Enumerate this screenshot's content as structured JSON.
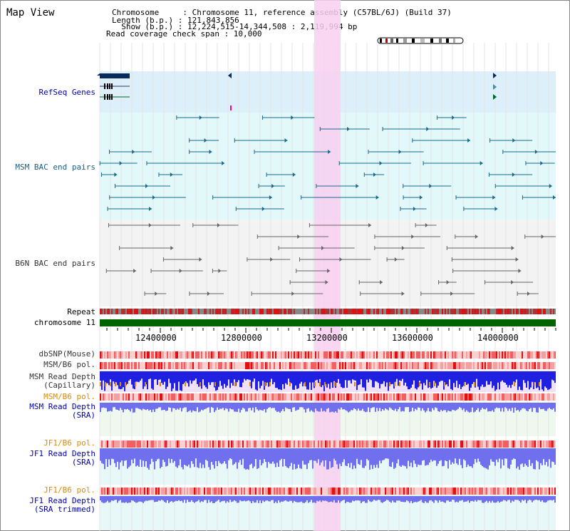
{
  "title": "Map View",
  "info": {
    "line1": "Chromosome     : Chromosome 11, reference assembly (C57BL/6J) (Build 37)",
    "line2": "Length (b.p.) : 121,843,856",
    "line3": "  Show (b.p.) : 12,224,515-14,344,508 : 2,119,994 bp",
    "line4": "Read coverage check span : 10,000"
  },
  "tracks": {
    "refseq": "RefSeq Genes",
    "msm_bac": "MSM BAC end pairs",
    "b6n_bac": "B6N BAC end pairs",
    "repeat": "Repeat",
    "chromosome": "chromosome 11",
    "dbsnp": "dbSNP(Mouse)",
    "msm_b6_pol1": "MSM/B6 pol.",
    "msm_depth_cap_1": "MSM Read Depth",
    "msm_depth_cap_2": "(Capillary)",
    "msm_b6_pol2": "MSM/B6 pol.",
    "msm_depth_sra_1": "MSM Read Depth",
    "msm_depth_sra_2": "(SRA)",
    "jf1_b6_pol1": "JF1/B6 pol.",
    "jf1_depth_1": "JF1 Read Depth",
    "jf1_depth_2": "(SRA)",
    "jf1_b6_pol2": "JF1/B6 pol.",
    "jf1_trim_1": "JF1 Read Depth",
    "jf1_trim_2": "(SRA trimmed)"
  },
  "axis": {
    "ticks": [
      "12400000",
      "12800000",
      "13200000",
      "13600000",
      "14000000"
    ]
  },
  "colors": {
    "highlight": "#f8d0f0",
    "refseq_bg": "#ddf0fa",
    "msm_bac_bg": "#e2f8fa",
    "b6n_bac_bg": "#f3f3f3",
    "chromosome": "#006400",
    "depth_blue": "#2020e0",
    "depth_purple": "#7070ee"
  }
}
